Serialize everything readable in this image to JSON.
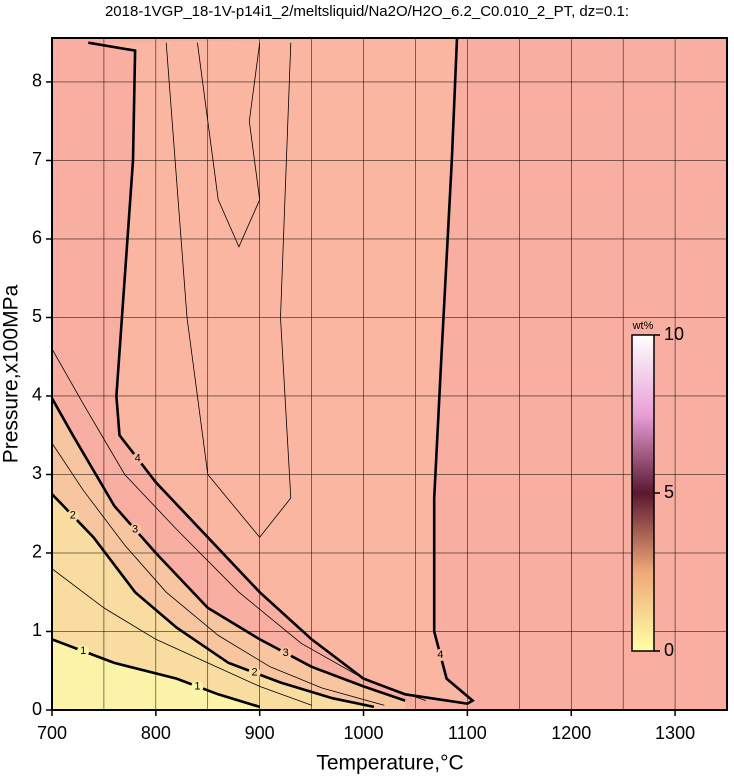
{
  "chart_data": {
    "type": "contour",
    "title": "2018-1VGP_18-1V-p14i1_2/meltsliquid/Na2O/H2O_6.2_C0.010_2_PT, dz=0.1:",
    "x_label": "Temperature,°C",
    "y_label": "Pressure,x100MPa",
    "xlim": [
      700,
      1350
    ],
    "ylim": [
      0,
      8.56
    ],
    "xticks": [
      700,
      800,
      900,
      1000,
      1100,
      1200,
      1300
    ],
    "xminorticks": [
      750,
      850,
      950,
      1050,
      1150,
      1250
    ],
    "yticks": [
      0,
      1,
      2,
      3,
      4,
      5,
      6,
      7,
      8
    ],
    "grid": true,
    "background": "#f9aea2",
    "colorbar": {
      "title": "wt%",
      "lim": [
        0,
        10
      ],
      "ticks": [
        0,
        5,
        10
      ],
      "colors": [
        "#ffffa8",
        "#f0a878",
        "#5a1830",
        "#e8a0d8",
        "#ffffff"
      ]
    },
    "contours": [
      {
        "level": 4,
        "width": 2.6,
        "fill": "#fbb6a2",
        "x": [
          735,
          780,
          778,
          762,
          765,
          800,
          850,
          900,
          950,
          1000,
          1040,
          1100,
          1105,
          1080,
          1068,
          1068,
          1075,
          1085,
          1090
        ],
        "y": [
          8.5,
          8.4,
          7.0,
          4.0,
          3.5,
          2.9,
          2.2,
          1.5,
          0.9,
          0.4,
          0.2,
          0.08,
          0.12,
          0.4,
          1.0,
          2.7,
          4.5,
          7.0,
          8.56
        ]
      },
      {
        "level": 3,
        "width": 2.6,
        "fill": "#f7c6a0",
        "x": [
          700,
          720,
          760,
          800,
          850,
          900,
          950,
          1000,
          1040
        ],
        "y": [
          3.97,
          3.5,
          2.6,
          2.0,
          1.3,
          0.9,
          0.55,
          0.3,
          0.12
        ]
      },
      {
        "level": 2,
        "width": 2.6,
        "fill": "#f8dca0",
        "x": [
          700,
          740,
          780,
          820,
          870,
          920,
          970,
          1010
        ],
        "y": [
          2.75,
          2.2,
          1.5,
          1.05,
          0.6,
          0.35,
          0.15,
          0.04
        ]
      },
      {
        "level": 1,
        "width": 2.6,
        "fill": "#fbf3a8",
        "x": [
          700,
          760,
          820,
          860,
          900
        ],
        "y": [
          0.9,
          0.6,
          0.4,
          0.2,
          0.04
        ]
      }
    ],
    "thin_contours": [
      {
        "level": 4.2,
        "x": [
          810,
          830,
          850,
          900,
          930,
          920,
          930
        ],
        "y": [
          8.5,
          5,
          3,
          2.2,
          2.7,
          5,
          8.5
        ]
      },
      {
        "level": 4.4,
        "x": [
          840,
          860,
          880,
          900,
          890,
          900
        ],
        "y": [
          8.5,
          6.5,
          5.9,
          6.5,
          7.5,
          8.5
        ]
      },
      {
        "level": 3.5,
        "x": [
          700,
          730,
          770,
          820,
          880,
          940,
          1000,
          1060
        ],
        "y": [
          4.6,
          3.9,
          3.0,
          2.3,
          1.5,
          0.85,
          0.4,
          0.12
        ]
      },
      {
        "level": 2.5,
        "x": [
          700,
          730,
          770,
          810,
          860,
          910,
          960,
          1020
        ],
        "y": [
          3.4,
          2.8,
          2.1,
          1.5,
          0.95,
          0.55,
          0.28,
          0.06
        ]
      },
      {
        "level": 1.5,
        "x": [
          700,
          750,
          800,
          850,
          900,
          950
        ],
        "y": [
          1.8,
          1.3,
          0.9,
          0.6,
          0.3,
          0.06
        ]
      }
    ]
  }
}
